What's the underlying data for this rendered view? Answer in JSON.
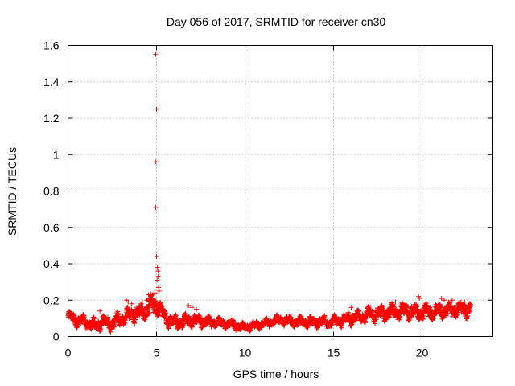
{
  "chart_data": {
    "type": "scatter",
    "title": "Day 056 of 2017, SRMTID for receiver cn30",
    "xlabel": "GPS time / hours",
    "ylabel": "SRMTID / TECUs",
    "xlim": [
      0,
      24
    ],
    "ylim": [
      0,
      1.6
    ],
    "xticks": [
      0,
      5,
      10,
      15,
      20
    ],
    "xtick_labels": [
      "0",
      "5",
      "10",
      "15",
      "20"
    ],
    "yticks": [
      0,
      0.2,
      0.4,
      0.6,
      0.8,
      1,
      1.2,
      1.4,
      1.6
    ],
    "ytick_labels": [
      "0",
      "0.2",
      "0.4",
      "0.6",
      "0.8",
      "1",
      "1.2",
      "1.4",
      "1.6"
    ],
    "grid": true,
    "marker": "plus",
    "marker_color": "#ff0000",
    "series": [
      {
        "name": "SRMTID",
        "x_range": [
          0,
          22.75
        ],
        "sample_interval_hours": 0.0083,
        "baseline": [
          [
            0,
            0.11
          ],
          [
            0.5,
            0.09
          ],
          [
            1,
            0.08
          ],
          [
            1.5,
            0.06
          ],
          [
            2,
            0.08
          ],
          [
            2.5,
            0.07
          ],
          [
            3,
            0.1
          ],
          [
            3.5,
            0.12
          ],
          [
            4,
            0.13
          ],
          [
            4.5,
            0.15
          ],
          [
            4.8,
            0.18
          ],
          [
            5.2,
            0.15
          ],
          [
            5.5,
            0.1
          ],
          [
            6,
            0.08
          ],
          [
            7,
            0.09
          ],
          [
            8,
            0.08
          ],
          [
            9,
            0.07
          ],
          [
            10,
            0.05
          ],
          [
            11,
            0.07
          ],
          [
            12,
            0.09
          ],
          [
            13,
            0.08
          ],
          [
            14,
            0.08
          ],
          [
            15,
            0.08
          ],
          [
            16,
            0.1
          ],
          [
            17,
            0.12
          ],
          [
            18,
            0.13
          ],
          [
            19,
            0.14
          ],
          [
            20,
            0.13
          ],
          [
            21,
            0.14
          ],
          [
            22,
            0.15
          ],
          [
            22.75,
            0.15
          ]
        ],
        "spread": [
          [
            0,
            0.03
          ],
          [
            4,
            0.04
          ],
          [
            4.8,
            0.06
          ],
          [
            5.5,
            0.04
          ],
          [
            10,
            0.02
          ],
          [
            15,
            0.03
          ],
          [
            18,
            0.04
          ],
          [
            22.75,
            0.04
          ]
        ],
        "peaks": [
          [
            4.95,
            1.55
          ],
          [
            5.0,
            1.25
          ],
          [
            4.97,
            0.96
          ],
          [
            4.96,
            0.71
          ],
          [
            5.0,
            0.44
          ],
          [
            5.05,
            0.38
          ],
          [
            5.08,
            0.36
          ],
          [
            5.1,
            0.33
          ],
          [
            5.03,
            0.31
          ],
          [
            5.12,
            0.27
          ],
          [
            5.15,
            0.25
          ],
          [
            4.9,
            0.24
          ],
          [
            4.55,
            0.23
          ],
          [
            4.6,
            0.21
          ],
          [
            4.45,
            0.2
          ],
          [
            3.3,
            0.2
          ],
          [
            3.4,
            0.19
          ],
          [
            3.6,
            0.18
          ],
          [
            4.2,
            0.19
          ],
          [
            6.8,
            0.17
          ],
          [
            7.0,
            0.16
          ],
          [
            7.25,
            0.15
          ],
          [
            1.8,
            0.14
          ],
          [
            19.8,
            0.22
          ],
          [
            19.85,
            0.21
          ],
          [
            21.1,
            0.21
          ],
          [
            21.25,
            0.2
          ],
          [
            21.7,
            0.2
          ],
          [
            22.2,
            0.19
          ],
          [
            22.4,
            0.19
          ],
          [
            18.5,
            0.19
          ],
          [
            17.0,
            0.17
          ],
          [
            16.0,
            0.16
          ],
          [
            11.8,
            0.12
          ]
        ]
      }
    ]
  }
}
